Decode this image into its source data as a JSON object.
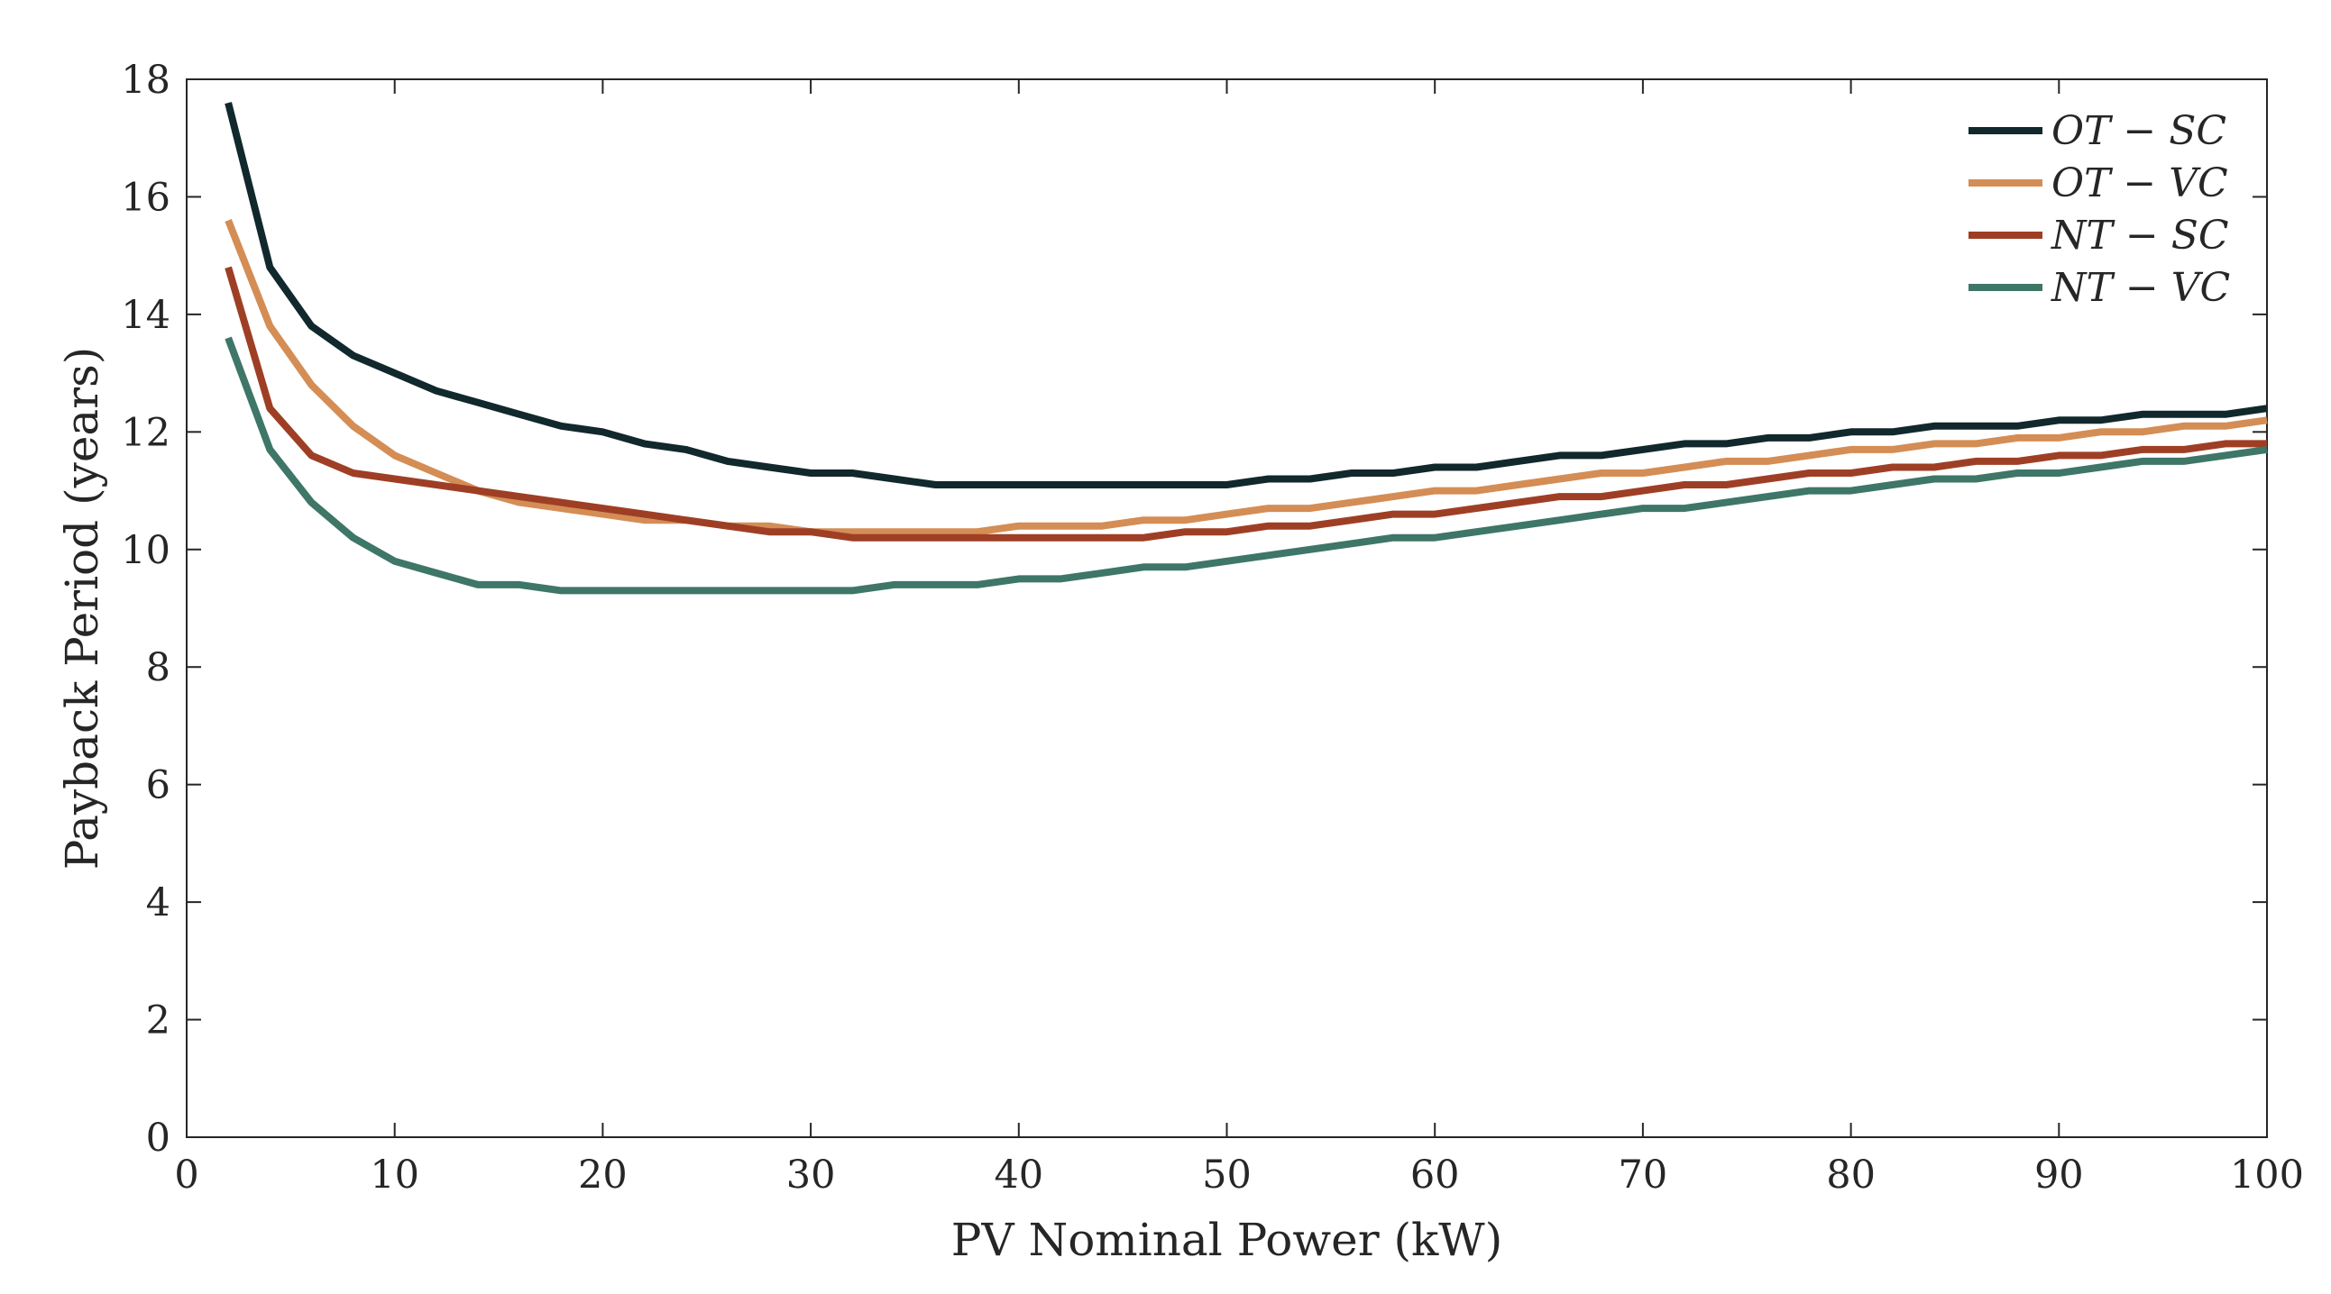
{
  "chart_data": {
    "type": "line",
    "title": "",
    "xlabel": "PV Nominal Power (kW)",
    "ylabel": "Payback Period (years)",
    "xlim": [
      0,
      100
    ],
    "ylim": [
      0,
      18
    ],
    "xticks": [
      0,
      10,
      20,
      30,
      40,
      50,
      60,
      70,
      80,
      90,
      100
    ],
    "yticks": [
      0,
      2,
      4,
      6,
      8,
      10,
      12,
      14,
      16,
      18
    ],
    "grid": false,
    "legend_position": "top-right",
    "x": [
      2,
      4,
      6,
      8,
      10,
      12,
      14,
      16,
      18,
      20,
      22,
      24,
      26,
      28,
      30,
      32,
      34,
      36,
      38,
      40,
      42,
      44,
      46,
      48,
      50,
      52,
      54,
      56,
      58,
      60,
      62,
      64,
      66,
      68,
      70,
      72,
      74,
      76,
      78,
      80,
      82,
      84,
      86,
      88,
      90,
      92,
      94,
      96,
      98,
      100
    ],
    "series": [
      {
        "name": "OT − SC",
        "color": "#11282c",
        "values": [
          17.6,
          14.8,
          13.8,
          13.3,
          13.0,
          12.7,
          12.5,
          12.3,
          12.1,
          12.0,
          11.8,
          11.7,
          11.5,
          11.4,
          11.3,
          11.3,
          11.2,
          11.1,
          11.1,
          11.1,
          11.1,
          11.1,
          11.1,
          11.1,
          11.1,
          11.2,
          11.2,
          11.3,
          11.3,
          11.4,
          11.4,
          11.5,
          11.6,
          11.6,
          11.7,
          11.8,
          11.8,
          11.9,
          11.9,
          12.0,
          12.0,
          12.1,
          12.1,
          12.1,
          12.2,
          12.2,
          12.3,
          12.3,
          12.3,
          12.4
        ]
      },
      {
        "name": "OT − VC",
        "color": "#d48d55",
        "values": [
          15.6,
          13.8,
          12.8,
          12.1,
          11.6,
          11.3,
          11.0,
          10.8,
          10.7,
          10.6,
          10.5,
          10.5,
          10.4,
          10.4,
          10.3,
          10.3,
          10.3,
          10.3,
          10.3,
          10.4,
          10.4,
          10.4,
          10.5,
          10.5,
          10.6,
          10.7,
          10.7,
          10.8,
          10.9,
          11.0,
          11.0,
          11.1,
          11.2,
          11.3,
          11.3,
          11.4,
          11.5,
          11.5,
          11.6,
          11.7,
          11.7,
          11.8,
          11.8,
          11.9,
          11.9,
          12.0,
          12.0,
          12.1,
          12.1,
          12.2
        ]
      },
      {
        "name": "NT − SC",
        "color": "#9e3f25",
        "values": [
          14.8,
          12.4,
          11.6,
          11.3,
          11.2,
          11.1,
          11.0,
          10.9,
          10.8,
          10.7,
          10.6,
          10.5,
          10.4,
          10.3,
          10.3,
          10.2,
          10.2,
          10.2,
          10.2,
          10.2,
          10.2,
          10.2,
          10.2,
          10.3,
          10.3,
          10.4,
          10.4,
          10.5,
          10.6,
          10.6,
          10.7,
          10.8,
          10.9,
          10.9,
          11.0,
          11.1,
          11.1,
          11.2,
          11.3,
          11.3,
          11.4,
          11.4,
          11.5,
          11.5,
          11.6,
          11.6,
          11.7,
          11.7,
          11.8,
          11.8
        ]
      },
      {
        "name": "NT − VC",
        "color": "#3e7667",
        "values": [
          13.6,
          11.7,
          10.8,
          10.2,
          9.8,
          9.6,
          9.4,
          9.4,
          9.3,
          9.3,
          9.3,
          9.3,
          9.3,
          9.3,
          9.3,
          9.3,
          9.4,
          9.4,
          9.4,
          9.5,
          9.5,
          9.6,
          9.7,
          9.7,
          9.8,
          9.9,
          10.0,
          10.1,
          10.2,
          10.2,
          10.3,
          10.4,
          10.5,
          10.6,
          10.7,
          10.7,
          10.8,
          10.9,
          11.0,
          11.0,
          11.1,
          11.2,
          11.2,
          11.3,
          11.3,
          11.4,
          11.5,
          11.5,
          11.6,
          11.7
        ]
      }
    ]
  }
}
